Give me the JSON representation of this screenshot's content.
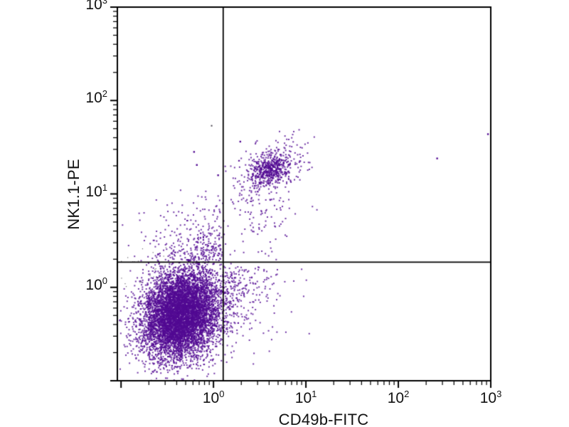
{
  "chart_data": {
    "type": "scatter",
    "title": "",
    "xlabel": "CD49b-FITC",
    "ylabel": "NK1.1-PE",
    "x_scale": "log",
    "y_scale": "log",
    "x_log_range": [
      -1.04,
      3
    ],
    "y_log_range": [
      -1,
      3
    ],
    "x_tick_exponents": [
      0,
      1,
      2,
      3
    ],
    "y_tick_exponents": [
      0,
      1,
      2,
      3
    ],
    "grid": false,
    "legend": "none",
    "frame_color": "#000000",
    "gate_color": "#000000",
    "point_color": "#520a92",
    "debris_color": "#45404c",
    "quadrant_gate_log10": {
      "x": 0.105,
      "y": 0.27
    },
    "quadrant_gate_linear": {
      "x": 1.27,
      "y": 1.86
    },
    "populations": [
      {
        "name": "main-double-negative",
        "type": "gauss2d",
        "count": 7200,
        "center_log10": [
          -0.35,
          -0.29
        ],
        "sd_log10": [
          0.21,
          0.24
        ],
        "corr": 0.15,
        "dot": 2
      },
      {
        "name": "nk-double-positive",
        "type": "gauss2d",
        "count": 430,
        "center_log10": [
          0.62,
          1.26
        ],
        "sd_log10": [
          0.17,
          0.14
        ],
        "corr": 0.35,
        "dot": 2
      },
      {
        "name": "nk-double-positive-core",
        "type": "gauss2d",
        "count": 260,
        "center_log10": [
          0.62,
          1.27
        ],
        "sd_log10": [
          0.09,
          0.07
        ],
        "corr": 0.2,
        "dot": 2
      },
      {
        "name": "upper-left-scatter",
        "type": "corner",
        "count": 270,
        "corner_log10": [
          0.1,
          0.287
        ],
        "decay": [
          0.38,
          0.3
        ],
        "dir": [
          -1,
          1
        ],
        "dot": 2
      },
      {
        "name": "lower-right-scatter",
        "type": "corner",
        "count": 200,
        "corner_log10": [
          0.1,
          0.22
        ],
        "decay": [
          0.34,
          0.42
        ],
        "dir": [
          1,
          -1
        ],
        "dot": 2
      },
      {
        "name": "mid-right-band",
        "type": "corner",
        "count": 90,
        "corner_log10": [
          0.55,
          0.95
        ],
        "decay": [
          0.22,
          0.3
        ],
        "dir": [
          0,
          -1
        ],
        "dot": 2
      },
      {
        "name": "debris-gray",
        "type": "uniform",
        "count": 22,
        "x_log10": [
          -1.02,
          -0.5
        ],
        "y_log10": [
          0.0,
          0.45
        ],
        "color": "#45404c",
        "dot": 1.2
      }
    ],
    "extra_points_log10": {
      "purple": [
        [
          2.42,
          1.38
        ],
        [
          2.97,
          1.64
        ],
        [
          -0.21,
          1.45
        ],
        [
          -0.18,
          1.31
        ],
        [
          0.29,
          1.56
        ],
        [
          0.05,
          1.2
        ]
      ],
      "gray": [
        [
          -0.02,
          1.73
        ]
      ]
    }
  }
}
